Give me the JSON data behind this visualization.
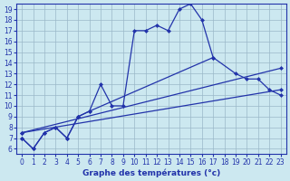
{
  "title": "Graphe des températures (°c)",
  "bg_color": "#cce8f0",
  "line_color": "#2233aa",
  "grid_color": "#9ab8c8",
  "xlim": [
    -0.5,
    23.5
  ],
  "ylim": [
    5.5,
    19.5
  ],
  "xticks": [
    0,
    1,
    2,
    3,
    4,
    5,
    6,
    7,
    8,
    9,
    10,
    11,
    12,
    13,
    14,
    15,
    16,
    17,
    18,
    19,
    20,
    21,
    22,
    23
  ],
  "yticks": [
    6,
    7,
    8,
    9,
    10,
    11,
    12,
    13,
    14,
    15,
    16,
    17,
    18,
    19
  ],
  "curve_main_x": [
    0,
    1,
    2,
    3,
    4,
    5,
    6,
    7,
    8,
    9,
    10,
    11,
    12,
    13,
    14,
    15,
    16,
    17
  ],
  "curve_main_y": [
    7.0,
    6.0,
    7.5,
    8.0,
    7.0,
    9.0,
    9.5,
    12.0,
    10.0,
    10.0,
    17.0,
    17.0,
    17.5,
    17.0,
    19.0,
    19.5,
    18.0,
    14.5
  ],
  "curve2_x": [
    0,
    1,
    2,
    3,
    4,
    5,
    6,
    17,
    19,
    20,
    21,
    22,
    23
  ],
  "curve2_y": [
    7.0,
    6.0,
    7.5,
    8.0,
    7.0,
    9.0,
    9.5,
    14.5,
    13.0,
    12.5,
    12.5,
    11.5,
    11.0
  ],
  "line1_x": [
    0,
    23
  ],
  "line1_y": [
    7.5,
    11.5
  ],
  "line2_x": [
    0,
    23
  ],
  "line2_y": [
    7.5,
    13.5
  ],
  "xlabel": "Graphe des températures (°c)"
}
